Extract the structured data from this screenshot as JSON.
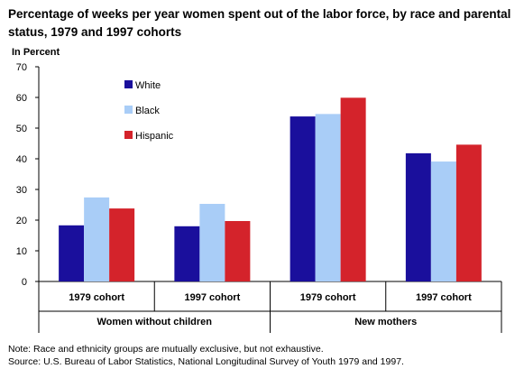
{
  "header": {
    "title": "Percentage of weeks per year women spent out of the labor force, by race and parental status, 1979 and 1997 cohorts",
    "unit": "In Percent"
  },
  "footer": {
    "note": "Note: Race and ethnicity groups are mutually exclusive, but not exhaustive.",
    "source": "Source: U.S. Bureau of Labor Statistics, National Longitudinal Survey of Youth 1979 and 1997."
  },
  "chart_data": {
    "type": "bar",
    "title": "Percentage of weeks per year women spent out of the labor force, by race and parental status, 1979 and 1997 cohorts",
    "ylabel": "In Percent",
    "xlabel": "",
    "ylim": [
      0,
      70
    ],
    "yticks": [
      0,
      10,
      20,
      30,
      40,
      50,
      60,
      70
    ],
    "grid": false,
    "legend_position": "top-left",
    "categories": [
      "1979 cohort",
      "1997 cohort",
      "1979 cohort",
      "1997 cohort"
    ],
    "groups": [
      {
        "label": "Women without children",
        "span": 2
      },
      {
        "label": "New mothers",
        "span": 2
      }
    ],
    "series": [
      {
        "name": "White",
        "color": "#1a0f9c",
        "values": [
          18.3,
          18.0,
          53.8,
          41.8
        ]
      },
      {
        "name": "Black",
        "color": "#a9cdf7",
        "values": [
          27.4,
          25.3,
          54.6,
          39.1
        ]
      },
      {
        "name": "Hispanic",
        "color": "#d4232b",
        "values": [
          23.8,
          19.7,
          59.9,
          44.6
        ]
      }
    ]
  }
}
